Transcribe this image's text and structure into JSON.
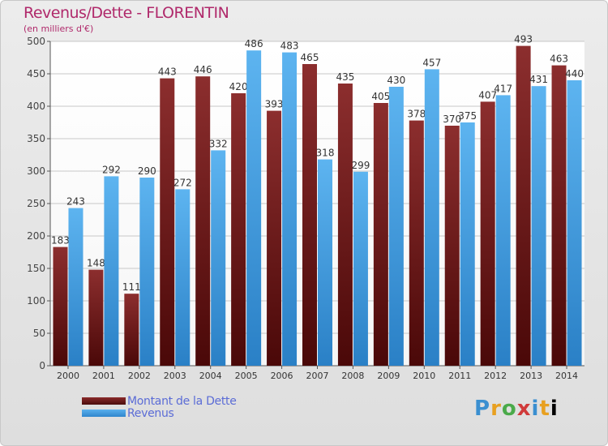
{
  "header": {
    "title": "Revenus/Dette - FLORENTIN",
    "subtitle": "(en milliers d'€)"
  },
  "legend": {
    "items": [
      {
        "label": "Montant de la Dette",
        "color": "#6b1a1a"
      },
      {
        "label": "Revenus",
        "color": "#3d9de0"
      }
    ]
  },
  "logo": {
    "letters": [
      "P",
      "r",
      "o",
      "x",
      "i",
      "t",
      "i"
    ]
  },
  "chart_data": {
    "type": "bar",
    "title": "Revenus/Dette - FLORENTIN",
    "subtitle": "(en milliers d'€)",
    "xlabel": "",
    "ylabel": "",
    "ylim": [
      0,
      500
    ],
    "yticks": [
      0,
      50,
      100,
      150,
      200,
      250,
      300,
      350,
      400,
      450,
      500
    ],
    "grid": true,
    "categories": [
      "2000",
      "2001",
      "2002",
      "2003",
      "2004",
      "2005",
      "2006",
      "2007",
      "2008",
      "2009",
      "2010",
      "2011",
      "2012",
      "2013",
      "2014"
    ],
    "series": [
      {
        "name": "Montant de la Dette",
        "color": "#7a2424",
        "values": [
          183,
          148,
          111,
          443,
          446,
          420,
          393,
          465,
          435,
          405,
          378,
          370,
          407,
          493,
          463
        ]
      },
      {
        "name": "Revenus",
        "color": "#48a3e6",
        "values": [
          243,
          292,
          290,
          272,
          332,
          486,
          483,
          318,
          299,
          430,
          457,
          375,
          417,
          431,
          440
        ]
      }
    ]
  }
}
